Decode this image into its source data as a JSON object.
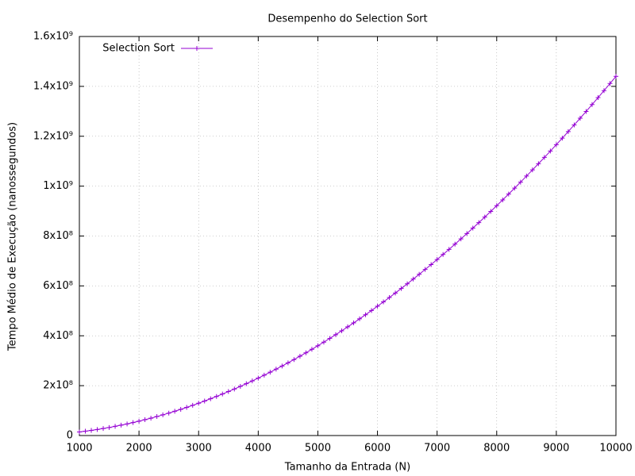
{
  "chart_data": {
    "type": "line",
    "title": "Desempenho do Selection Sort",
    "xlabel": "Tamanho da Entrada (N)",
    "ylabel": "Tempo Médio de Execução (nanossegundos)",
    "legend": "top-left",
    "grid": true,
    "xlim": [
      1000,
      10000
    ],
    "xticks": [
      1000,
      2000,
      3000,
      4000,
      5000,
      6000,
      7000,
      8000,
      9000,
      10000
    ],
    "ylim": [
      0,
      1600000000
    ],
    "yticks": [
      0,
      {
        "value": 200000000,
        "label": "2x10⁸"
      },
      {
        "value": 400000000,
        "label": "4x10⁸"
      },
      {
        "value": 600000000,
        "label": "6x10⁸"
      },
      {
        "value": 800000000,
        "label": "8x10⁸"
      },
      {
        "value": 1000000000,
        "label": "1x10⁹"
      },
      {
        "value": 1200000000,
        "label": "1.2x10⁹"
      },
      {
        "value": 1400000000,
        "label": "1.4x10⁹"
      },
      {
        "value": 1600000000,
        "label": "1.6x10⁹"
      }
    ],
    "x": [
      1000,
      1100,
      1200,
      1300,
      1400,
      1500,
      1600,
      1700,
      1800,
      1900,
      2000,
      2100,
      2200,
      2300,
      2400,
      2500,
      2600,
      2700,
      2800,
      2900,
      3000,
      3100,
      3200,
      3300,
      3400,
      3500,
      3600,
      3700,
      3800,
      3900,
      4000,
      4100,
      4200,
      4300,
      4400,
      4500,
      4600,
      4700,
      4800,
      4900,
      5000,
      5100,
      5200,
      5300,
      5400,
      5500,
      5600,
      5700,
      5800,
      5900,
      6000,
      6100,
      6200,
      6300,
      6400,
      6500,
      6600,
      6700,
      6800,
      6900,
      7000,
      7100,
      7200,
      7300,
      7400,
      7500,
      7600,
      7700,
      7800,
      7900,
      8000,
      8100,
      8200,
      8300,
      8400,
      8500,
      8600,
      8700,
      8800,
      8900,
      9000,
      9100,
      9200,
      9300,
      9400,
      9500,
      9600,
      9700,
      9800,
      9900,
      10000
    ],
    "series": [
      {
        "name": "Selection Sort",
        "color": "#9400d3",
        "values": [
          14400000,
          17420000,
          20740000,
          24340000,
          28220000,
          32400000,
          36860000,
          41620000,
          46660000,
          51980000,
          57600000,
          63500000,
          69700000,
          76180000,
          82940000,
          90000000,
          97340000,
          104980000,
          112900000,
          121100000,
          129600000,
          138380000,
          147460000,
          156820000,
          166460000,
          176400000,
          186620000,
          197140000,
          207940000,
          219020000,
          230400000,
          242060000,
          254020000,
          266260000,
          278780000,
          291600000,
          304700000,
          318100000,
          331780000,
          345740000,
          360000000,
          374540000,
          389380000,
          404500000,
          419900000,
          435600000,
          451580000,
          467860000,
          484420000,
          501260000,
          518400000,
          535820000,
          553540000,
          571540000,
          589820000,
          608400000,
          627260000,
          646420000,
          665860000,
          685580000,
          705600000,
          725900000,
          746500000,
          767380000,
          788540000,
          810000000,
          831740000,
          853780000,
          876100000,
          898700000,
          921600000,
          944780000,
          968260000,
          992020000,
          1016060000,
          1040400000,
          1065020000,
          1089940000,
          1115140000,
          1140620000,
          1166400000,
          1192460000,
          1218820000,
          1245460000,
          1272380000,
          1299600000,
          1327100000,
          1354900000,
          1382980000,
          1411340000,
          1440000000
        ]
      }
    ]
  }
}
